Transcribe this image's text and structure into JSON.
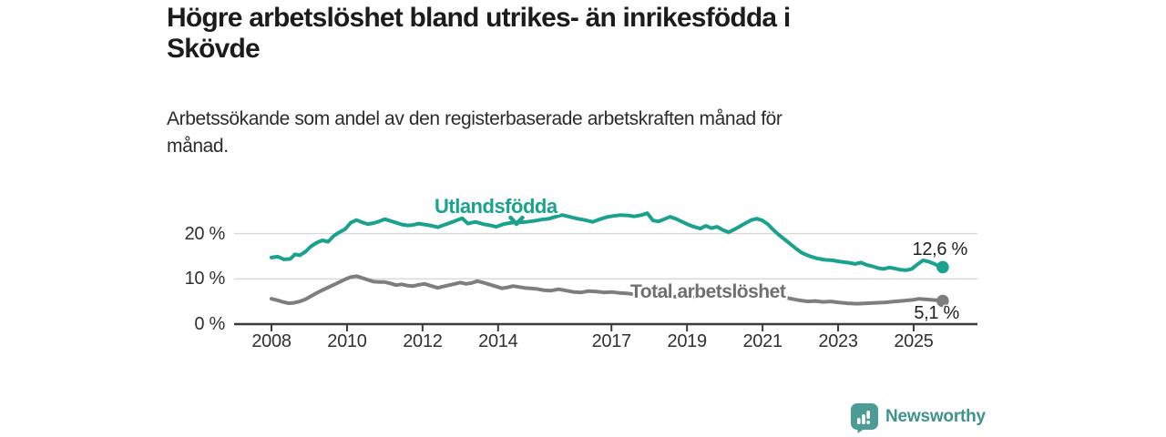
{
  "header": {
    "title_lines": [
      "Högre arbetslöshet bland utrikes- än inrikesfödda i",
      "Skövde"
    ],
    "subtitle_lines": [
      "Arbetssökande som andel av den registerbaserade arbetskraften månad för",
      "månad."
    ]
  },
  "chart_data": {
    "type": "line",
    "title": "Högre arbetslöshet bland utrikes- än inrikesfödda i Skövde",
    "subtitle": "Arbetssökande som andel av den registerbaserade arbetskraften månad för månad.",
    "unit": "percent of registered labour force",
    "xlabel": "",
    "ylabel": "",
    "xlim": [
      2007.0,
      2026.7
    ],
    "ylim": [
      0,
      27
    ],
    "grid": "horizontal",
    "legend_position": "inline-labels",
    "x_ticks": [
      2008,
      2010,
      2012,
      2014,
      2017,
      2019,
      2021,
      2023,
      2025
    ],
    "y_ticks": [
      {
        "value": 0,
        "label": "0 %"
      },
      {
        "value": 10,
        "label": "10 %"
      },
      {
        "value": 20,
        "label": "20 %"
      }
    ],
    "series": [
      {
        "name": "Utlandsfödda",
        "color": "#1aa28f",
        "label_color": "#1aa28f",
        "end_label": "12,6 %",
        "end_value": 12.6,
        "points": [
          [
            2008.0,
            14.7
          ],
          [
            2008.17,
            14.9
          ],
          [
            2008.33,
            14.3
          ],
          [
            2008.5,
            14.4
          ],
          [
            2008.62,
            15.4
          ],
          [
            2008.75,
            15.2
          ],
          [
            2008.9,
            16.0
          ],
          [
            2009.05,
            17.2
          ],
          [
            2009.2,
            18.0
          ],
          [
            2009.35,
            18.5
          ],
          [
            2009.5,
            18.2
          ],
          [
            2009.65,
            19.5
          ],
          [
            2009.8,
            20.3
          ],
          [
            2009.95,
            21.0
          ],
          [
            2010.1,
            22.4
          ],
          [
            2010.25,
            23.0
          ],
          [
            2010.4,
            22.5
          ],
          [
            2010.55,
            22.1
          ],
          [
            2010.7,
            22.3
          ],
          [
            2010.85,
            22.7
          ],
          [
            2011.0,
            23.2
          ],
          [
            2011.15,
            22.8
          ],
          [
            2011.3,
            22.4
          ],
          [
            2011.45,
            22.0
          ],
          [
            2011.6,
            21.8
          ],
          [
            2011.75,
            21.9
          ],
          [
            2011.9,
            22.2
          ],
          [
            2012.05,
            22.0
          ],
          [
            2012.2,
            21.8
          ],
          [
            2012.4,
            21.4
          ],
          [
            2012.6,
            22.0
          ],
          [
            2012.8,
            22.6
          ],
          [
            2012.95,
            23.1
          ],
          [
            2013.05,
            23.4
          ],
          [
            2013.2,
            22.2
          ],
          [
            2013.4,
            22.6
          ],
          [
            2013.6,
            22.1
          ],
          [
            2013.8,
            21.8
          ],
          [
            2013.95,
            21.5
          ],
          [
            2014.15,
            22.1
          ],
          [
            2014.35,
            22.4
          ],
          [
            2014.55,
            22.5
          ],
          [
            2014.75,
            22.6
          ],
          [
            2014.95,
            22.8
          ],
          [
            2015.15,
            23.1
          ],
          [
            2015.35,
            23.3
          ],
          [
            2015.55,
            23.8
          ],
          [
            2015.7,
            24.1
          ],
          [
            2015.9,
            23.7
          ],
          [
            2016.1,
            23.3
          ],
          [
            2016.3,
            23.0
          ],
          [
            2016.5,
            22.6
          ],
          [
            2016.7,
            23.2
          ],
          [
            2016.9,
            23.7
          ],
          [
            2017.05,
            23.9
          ],
          [
            2017.25,
            24.1
          ],
          [
            2017.45,
            24.0
          ],
          [
            2017.6,
            23.8
          ],
          [
            2017.8,
            24.1
          ],
          [
            2017.95,
            24.5
          ],
          [
            2018.1,
            22.9
          ],
          [
            2018.25,
            22.7
          ],
          [
            2018.4,
            23.2
          ],
          [
            2018.55,
            23.7
          ],
          [
            2018.7,
            23.3
          ],
          [
            2018.85,
            22.7
          ],
          [
            2019.0,
            22.1
          ],
          [
            2019.15,
            21.6
          ],
          [
            2019.35,
            21.1
          ],
          [
            2019.5,
            21.7
          ],
          [
            2019.65,
            21.2
          ],
          [
            2019.8,
            21.5
          ],
          [
            2019.95,
            20.8
          ],
          [
            2020.1,
            20.3
          ],
          [
            2020.25,
            20.9
          ],
          [
            2020.4,
            21.6
          ],
          [
            2020.55,
            22.3
          ],
          [
            2020.7,
            23.0
          ],
          [
            2020.85,
            23.3
          ],
          [
            2021.0,
            22.9
          ],
          [
            2021.15,
            22.0
          ],
          [
            2021.3,
            20.7
          ],
          [
            2021.45,
            19.6
          ],
          [
            2021.6,
            18.6
          ],
          [
            2021.75,
            17.6
          ],
          [
            2021.9,
            16.6
          ],
          [
            2022.05,
            15.7
          ],
          [
            2022.25,
            15.0
          ],
          [
            2022.45,
            14.5
          ],
          [
            2022.65,
            14.2
          ],
          [
            2022.85,
            14.1
          ],
          [
            2023.05,
            13.8
          ],
          [
            2023.25,
            13.6
          ],
          [
            2023.45,
            13.3
          ],
          [
            2023.6,
            13.6
          ],
          [
            2023.75,
            13.1
          ],
          [
            2023.9,
            12.8
          ],
          [
            2024.05,
            12.4
          ],
          [
            2024.2,
            12.2
          ],
          [
            2024.35,
            12.5
          ],
          [
            2024.5,
            12.3
          ],
          [
            2024.65,
            12.0
          ],
          [
            2024.8,
            11.9
          ],
          [
            2024.95,
            12.2
          ],
          [
            2025.1,
            13.2
          ],
          [
            2025.25,
            14.1
          ],
          [
            2025.4,
            13.8
          ],
          [
            2025.55,
            13.3
          ],
          [
            2025.65,
            12.9
          ],
          [
            2025.77,
            12.6
          ]
        ]
      },
      {
        "name": "Total arbetslöshet",
        "color": "#7e7e7e",
        "label_color": "#6f6f6f",
        "end_label": "5,1 %",
        "end_value": 5.1,
        "points": [
          [
            2008.0,
            5.6
          ],
          [
            2008.15,
            5.3
          ],
          [
            2008.3,
            4.9
          ],
          [
            2008.45,
            4.6
          ],
          [
            2008.6,
            4.7
          ],
          [
            2008.75,
            5.0
          ],
          [
            2008.9,
            5.5
          ],
          [
            2009.05,
            6.2
          ],
          [
            2009.2,
            6.9
          ],
          [
            2009.35,
            7.5
          ],
          [
            2009.5,
            8.1
          ],
          [
            2009.65,
            8.7
          ],
          [
            2009.8,
            9.3
          ],
          [
            2009.95,
            9.9
          ],
          [
            2010.1,
            10.4
          ],
          [
            2010.25,
            10.6
          ],
          [
            2010.4,
            10.2
          ],
          [
            2010.55,
            9.8
          ],
          [
            2010.7,
            9.4
          ],
          [
            2010.85,
            9.3
          ],
          [
            2011.0,
            9.3
          ],
          [
            2011.15,
            9.0
          ],
          [
            2011.3,
            8.6
          ],
          [
            2011.45,
            8.8
          ],
          [
            2011.6,
            8.5
          ],
          [
            2011.75,
            8.4
          ],
          [
            2011.9,
            8.7
          ],
          [
            2012.05,
            8.9
          ],
          [
            2012.2,
            8.5
          ],
          [
            2012.4,
            8.0
          ],
          [
            2012.6,
            8.4
          ],
          [
            2012.8,
            8.8
          ],
          [
            2013.0,
            9.2
          ],
          [
            2013.15,
            8.9
          ],
          [
            2013.3,
            9.1
          ],
          [
            2013.45,
            9.5
          ],
          [
            2013.6,
            9.2
          ],
          [
            2013.8,
            8.7
          ],
          [
            2013.95,
            8.3
          ],
          [
            2014.1,
            7.9
          ],
          [
            2014.25,
            8.1
          ],
          [
            2014.4,
            8.4
          ],
          [
            2014.55,
            8.2
          ],
          [
            2014.7,
            8.0
          ],
          [
            2014.85,
            7.9
          ],
          [
            2015.0,
            7.8
          ],
          [
            2015.2,
            7.5
          ],
          [
            2015.4,
            7.4
          ],
          [
            2015.6,
            7.7
          ],
          [
            2015.8,
            7.4
          ],
          [
            2016.0,
            7.1
          ],
          [
            2016.2,
            7.0
          ],
          [
            2016.4,
            7.3
          ],
          [
            2016.6,
            7.2
          ],
          [
            2016.8,
            7.0
          ],
          [
            2017.0,
            7.1
          ],
          [
            2017.2,
            6.9
          ],
          [
            2017.4,
            6.8
          ],
          [
            2017.6,
            6.6
          ],
          [
            2017.8,
            6.5
          ],
          [
            2018.0,
            6.4
          ],
          [
            2018.3,
            6.2
          ],
          [
            2018.6,
            6.1
          ],
          [
            2018.9,
            6.0
          ],
          [
            2019.2,
            6.0
          ],
          [
            2019.5,
            6.1
          ],
          [
            2019.8,
            6.3
          ],
          [
            2020.1,
            6.6
          ],
          [
            2020.4,
            7.0
          ],
          [
            2020.6,
            7.2
          ],
          [
            2020.85,
            7.0
          ],
          [
            2021.1,
            6.6
          ],
          [
            2021.4,
            6.2
          ],
          [
            2021.7,
            5.7
          ],
          [
            2021.95,
            5.3
          ],
          [
            2022.2,
            5.0
          ],
          [
            2022.4,
            5.1
          ],
          [
            2022.6,
            4.9
          ],
          [
            2022.8,
            5.0
          ],
          [
            2023.0,
            4.8
          ],
          [
            2023.25,
            4.6
          ],
          [
            2023.5,
            4.5
          ],
          [
            2023.75,
            4.6
          ],
          [
            2024.0,
            4.7
          ],
          [
            2024.25,
            4.8
          ],
          [
            2024.5,
            5.0
          ],
          [
            2024.75,
            5.2
          ],
          [
            2025.0,
            5.4
          ],
          [
            2025.15,
            5.6
          ],
          [
            2025.3,
            5.5
          ],
          [
            2025.45,
            5.4
          ],
          [
            2025.6,
            5.3
          ],
          [
            2025.77,
            5.1
          ]
        ]
      }
    ]
  },
  "branding": {
    "wordmark": "Newsworthy",
    "logo_icon": "bar-chart-speech-bubble-icon",
    "icon_color": "#4d9b95",
    "text_color": "#3f938d"
  },
  "colors": {
    "title": "#1c1c1c",
    "subtitle": "#2b2b2b",
    "axis_line": "#3b3b3b",
    "tick_label": "#303030",
    "gridline": "#d9d9d9",
    "end_label": "#1f1f1f"
  }
}
